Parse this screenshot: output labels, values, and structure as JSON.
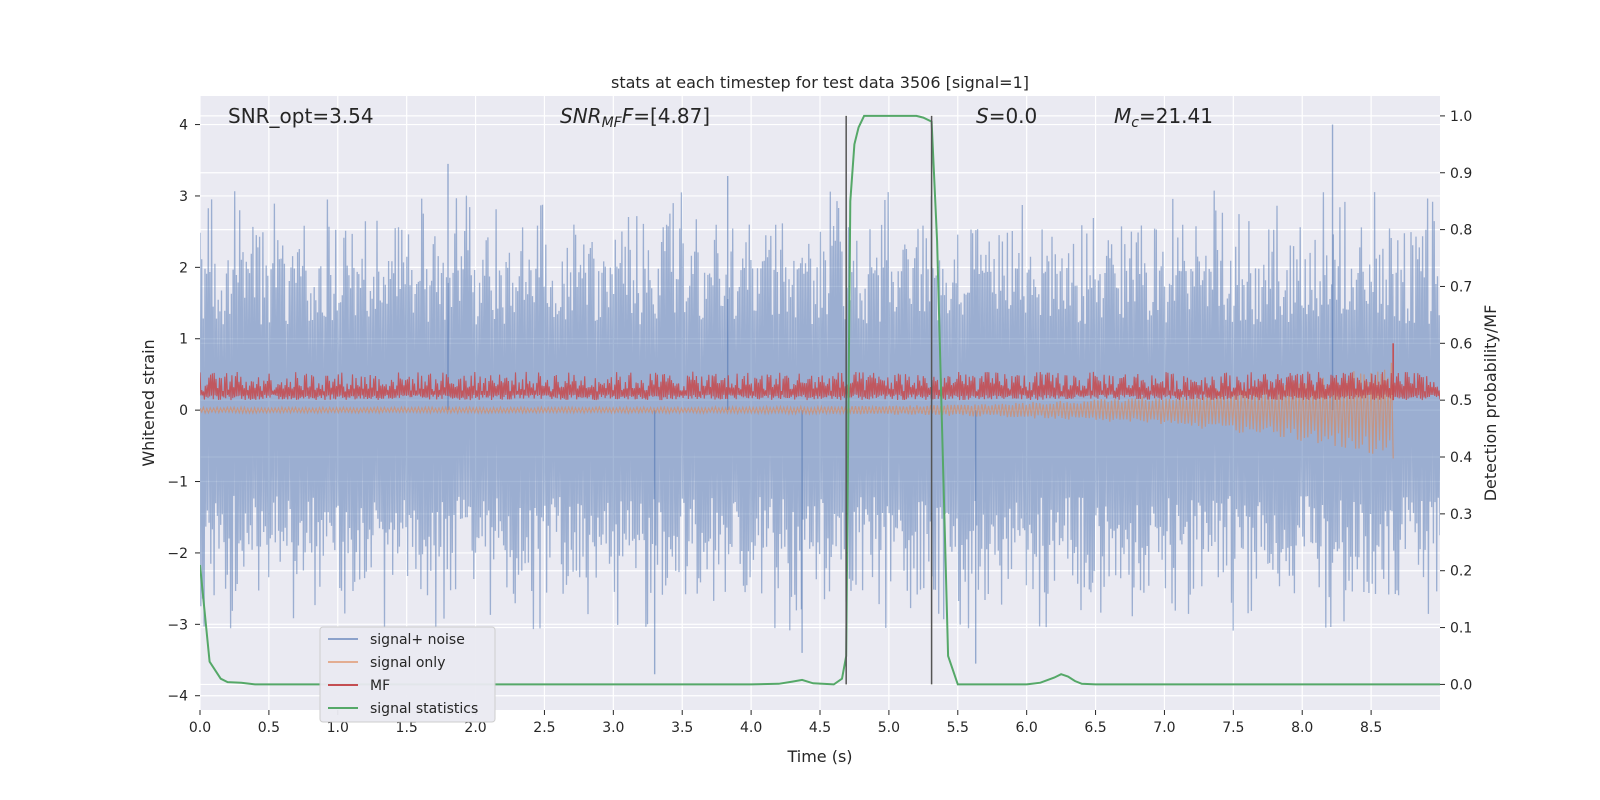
{
  "chart_data": {
    "type": "line",
    "title": "stats at each timestep for test data 3506 [signal=1]",
    "xlabel": "Time (s)",
    "ylabel_left": "Whitened strain",
    "ylabel_right": "Detection probability/MF",
    "xlim": [
      0.0,
      9.0
    ],
    "ylim_left": [
      -4.2,
      4.4
    ],
    "ylim_right": [
      -0.045,
      1.035
    ],
    "x_ticks": [
      "0.0",
      "0.5",
      "1.0",
      "1.5",
      "2.0",
      "2.5",
      "3.0",
      "3.5",
      "4.0",
      "4.5",
      "5.0",
      "5.5",
      "6.0",
      "6.5",
      "7.0",
      "7.5",
      "8.0",
      "8.5"
    ],
    "y_ticks_left": [
      "4",
      "3",
      "2",
      "1",
      "0",
      "−1",
      "−2",
      "−3",
      "−4"
    ],
    "y_ticks_right": [
      "1.0",
      "0.9",
      "0.8",
      "0.7",
      "0.6",
      "0.5",
      "0.4",
      "0.3",
      "0.2",
      "0.1",
      "0.0"
    ],
    "annotations": {
      "snr_opt": "SNR_opt=3.54",
      "snr_mf_base": "SNR",
      "snr_mf_sub": "MF",
      "snr_mf_rest": "=[4.87]",
      "s_var": "S",
      "s_rest": "=0.0",
      "mc_base": "M",
      "mc_sub": "c",
      "mc_rest": "=21.41"
    },
    "vlines_x": [
      4.69,
      5.31
    ],
    "series": [
      {
        "name": "signal+ noise",
        "axis": "left",
        "color": "#4c72b0",
        "band_positive": 2.0,
        "band_negative": -2.0,
        "peaks_positive": [
          [
            1.8,
            3.45
          ],
          [
            3.83,
            3.28
          ],
          [
            8.22,
            4.0
          ]
        ],
        "peaks_negative": [
          [
            3.3,
            -3.7
          ],
          [
            4.37,
            -3.4
          ],
          [
            5.63,
            -3.55
          ]
        ]
      },
      {
        "name": "signal only",
        "axis": "left",
        "color": "#dd8452",
        "chirp_end": 8.66,
        "chirp_min": -0.65
      },
      {
        "name": "MF",
        "axis": "right",
        "color": "#c44e52",
        "baseline": 0.5,
        "band_high": 0.55,
        "peak": [
          8.66,
          0.6
        ]
      },
      {
        "name": "signal statistics",
        "axis": "right",
        "color": "#55a868",
        "x": [
          0.0,
          0.07,
          0.15,
          0.2,
          0.3,
          0.4,
          0.5,
          1.0,
          2.0,
          3.0,
          4.0,
          4.2,
          4.3,
          4.37,
          4.45,
          4.6,
          4.66,
          4.69,
          4.72,
          4.75,
          4.78,
          4.82,
          5.0,
          5.1,
          5.2,
          5.25,
          5.31,
          5.35,
          5.43,
          5.5,
          5.55,
          6.0,
          6.1,
          6.2,
          6.25,
          6.3,
          6.35,
          6.4,
          6.5,
          7.0,
          8.0,
          9.0
        ],
        "y": [
          0.21,
          0.04,
          0.01,
          0.004,
          0.003,
          0.0,
          0.0,
          0.0,
          0.0,
          0.0,
          0.0,
          0.001,
          0.005,
          0.008,
          0.002,
          0.0,
          0.01,
          0.05,
          0.85,
          0.95,
          0.98,
          1.0,
          1.0,
          1.0,
          1.0,
          0.997,
          0.99,
          0.78,
          0.05,
          0.0,
          0.0,
          0.0,
          0.003,
          0.012,
          0.018,
          0.014,
          0.006,
          0.001,
          0.0,
          0.0,
          0.0,
          0.0
        ]
      }
    ],
    "legend_position": "lower-left",
    "grid": true
  }
}
